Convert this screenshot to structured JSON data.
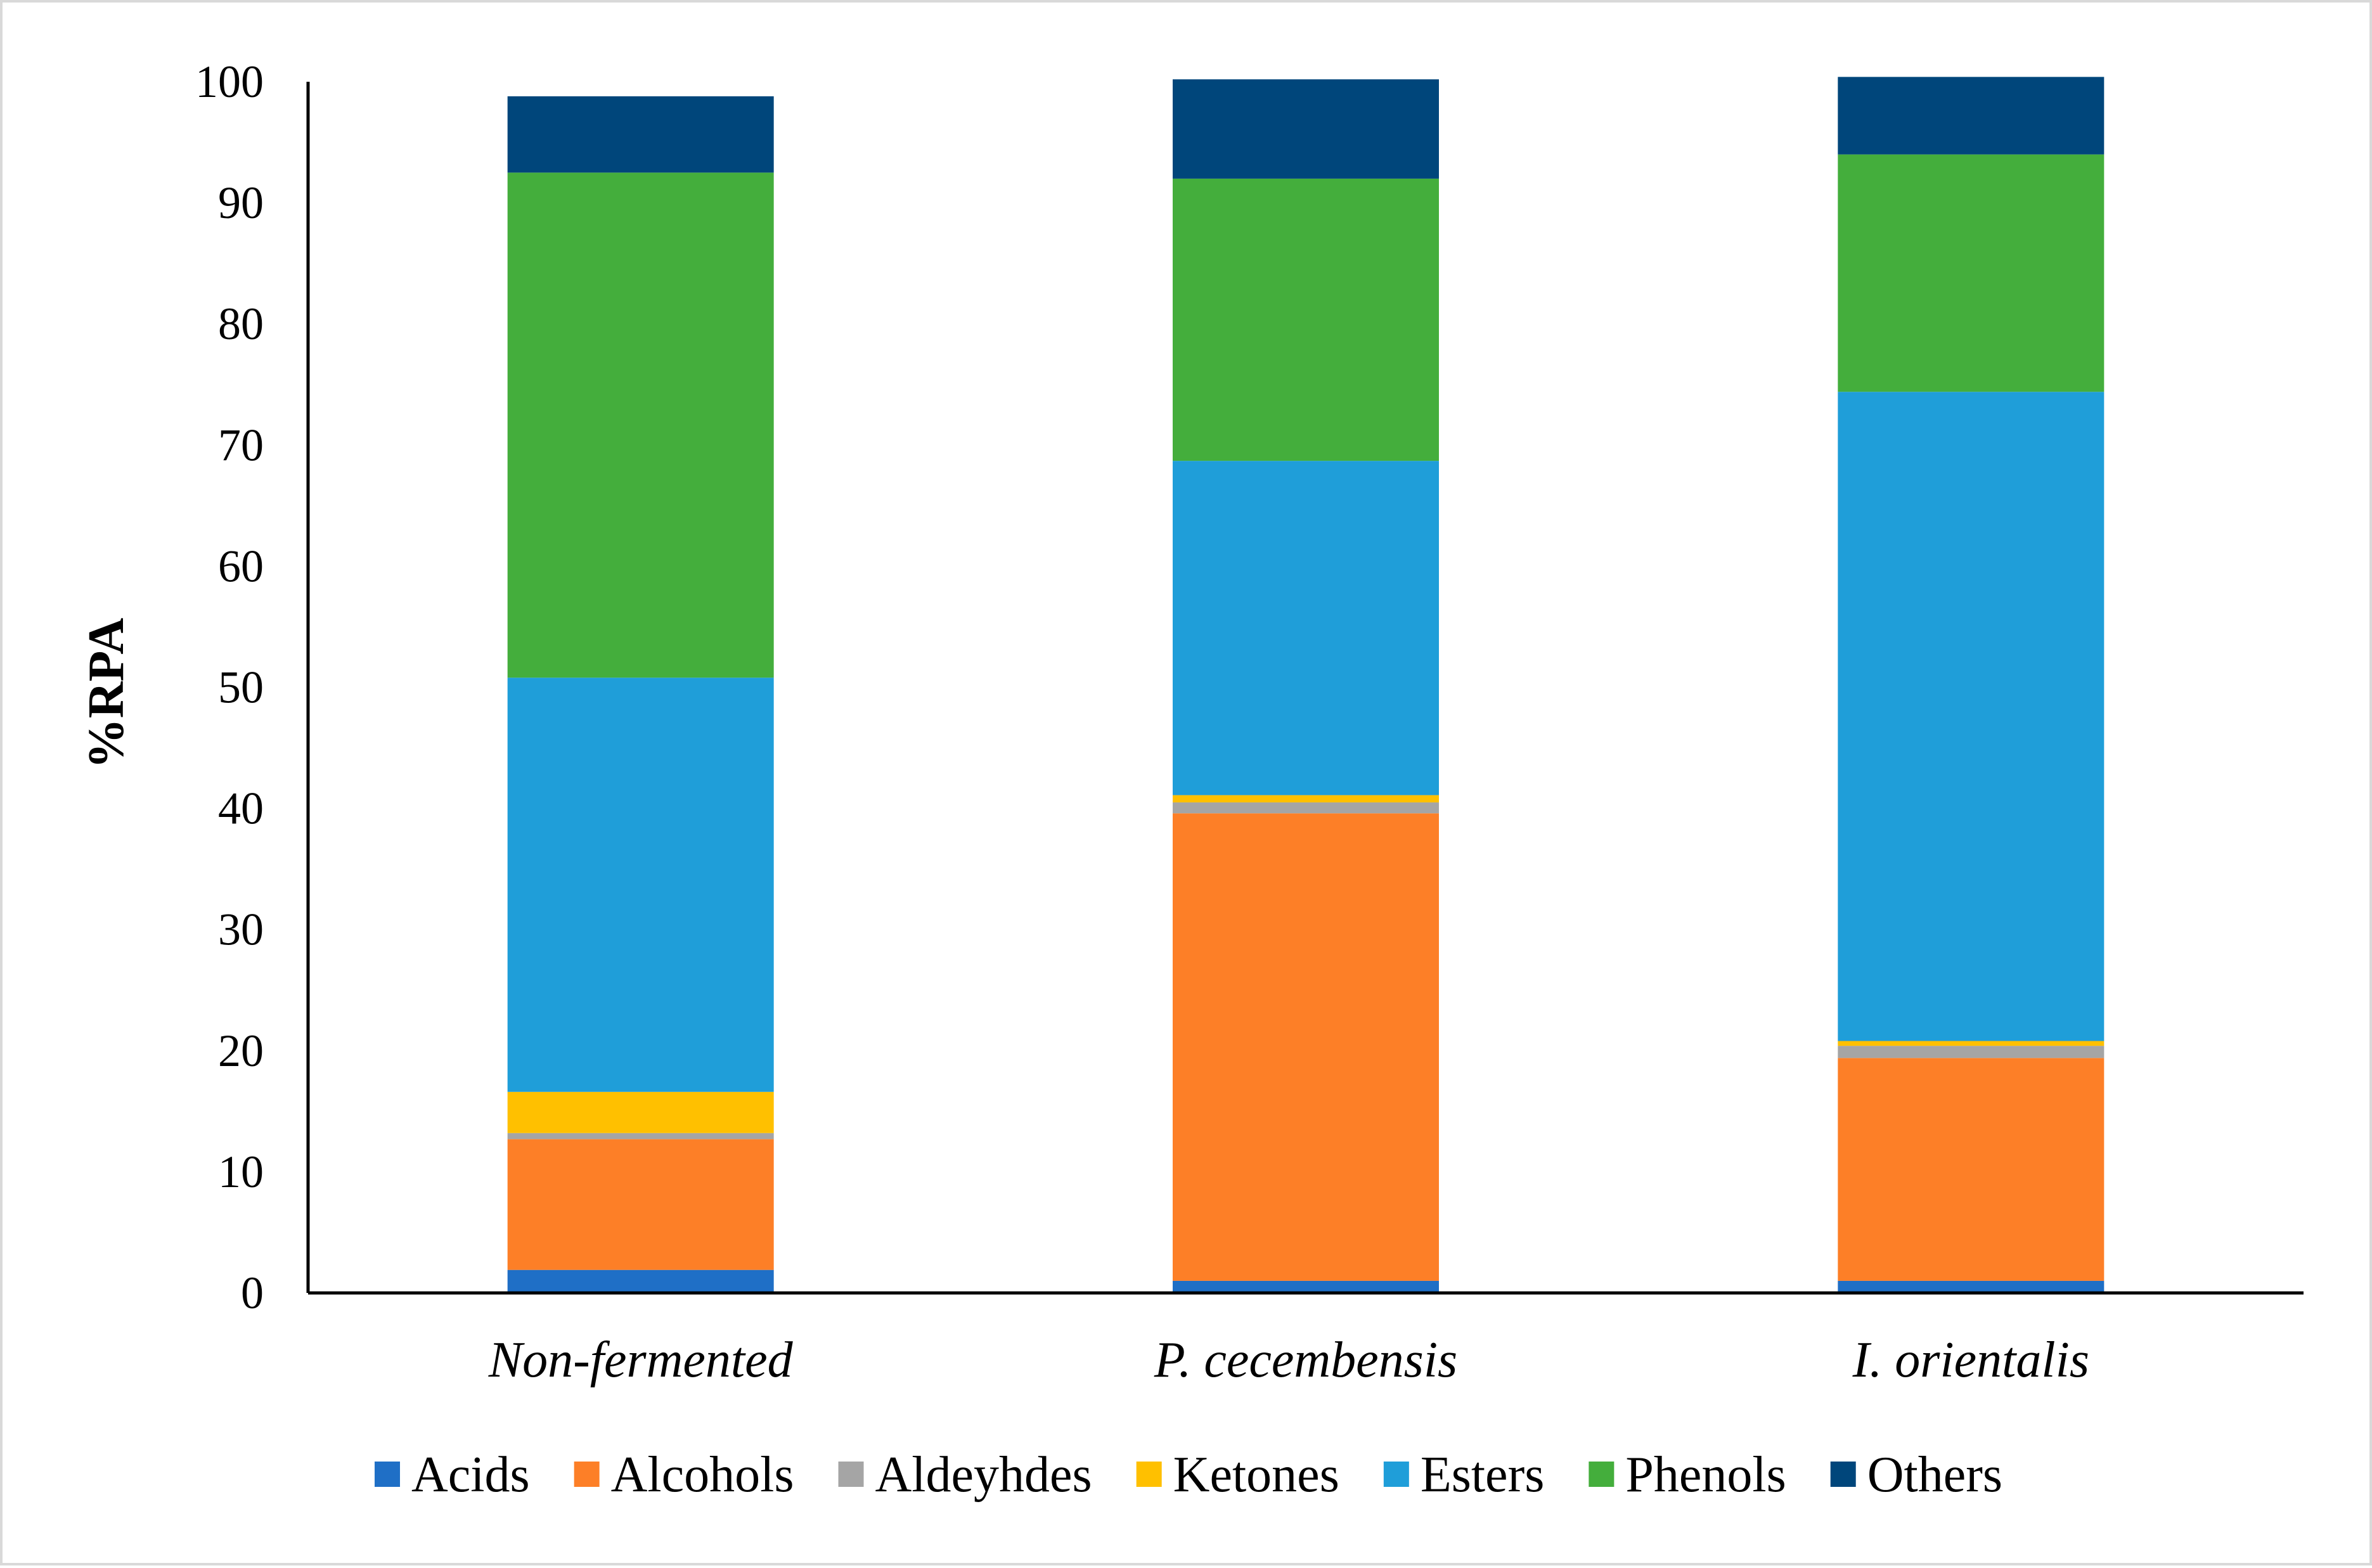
{
  "chart_data": {
    "type": "bar",
    "stacked": true,
    "categories": [
      "Non-fermented",
      "P. cecembensis",
      "I. orientalis"
    ],
    "ylabel": "%RPA",
    "ylim": [
      0,
      100
    ],
    "yticks": [
      "0",
      "10",
      "20",
      "30",
      "40",
      "50",
      "60",
      "70",
      "80",
      "90",
      "100"
    ],
    "grid": false,
    "legend": "bottom",
    "series": [
      {
        "name": "Acids",
        "color": "#1f6fc6",
        "values": [
          1.9,
          1.0,
          1.0
        ]
      },
      {
        "name": "Alcohols",
        "color": "#fd7f27",
        "values": [
          10.8,
          38.6,
          18.4
        ]
      },
      {
        "name": "Aldeyhdes",
        "color": "#a5a5a5",
        "values": [
          0.5,
          0.9,
          1.0
        ]
      },
      {
        "name": "Ketones",
        "color": "#ffc000",
        "values": [
          3.4,
          0.6,
          0.4
        ]
      },
      {
        "name": "Esters",
        "color": "#1f9ed9",
        "values": [
          34.2,
          27.6,
          53.6
        ]
      },
      {
        "name": "Phenols",
        "color": "#44ae3c",
        "values": [
          41.7,
          23.3,
          19.6
        ]
      },
      {
        "name": "Others",
        "color": "#00467b",
        "values": [
          6.3,
          8.2,
          6.4
        ]
      }
    ]
  }
}
